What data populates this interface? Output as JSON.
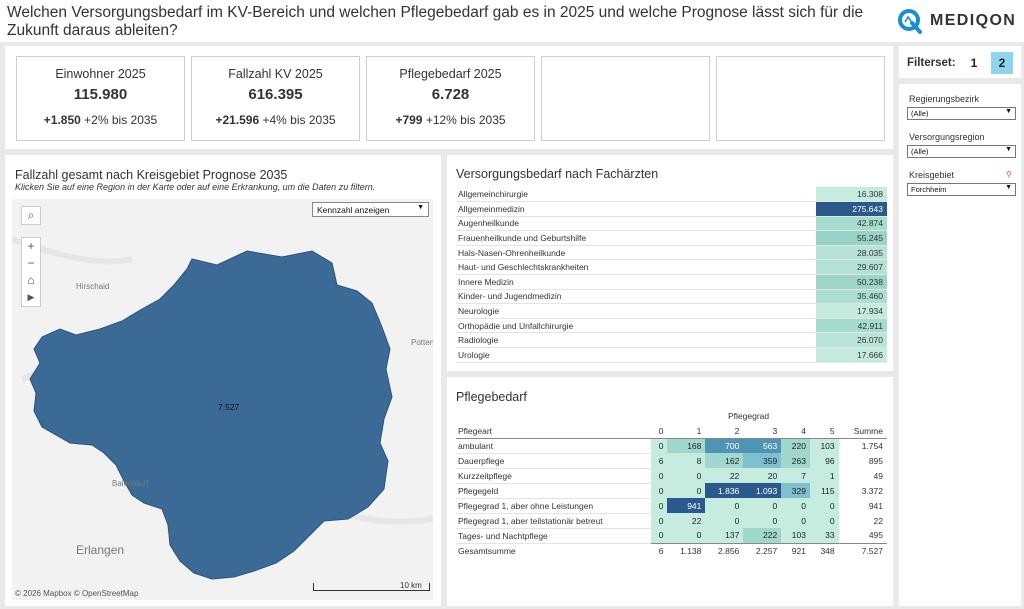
{
  "header": {
    "title": "Welchen Versorgungsbedarf im KV-Bereich und welchen Pflegebedarf gab es in 2025 und welche Prognose lässt sich für die Zukunft daraus ableiten?",
    "logo_text": "MEDIQON"
  },
  "kpis": [
    {
      "title": "Einwohner 2025",
      "value": "115.980",
      "delta_abs": "+1.850",
      "delta_text": " +2% bis 2035"
    },
    {
      "title": "Fallzahl KV 2025",
      "value": "616.395",
      "delta_abs": "+21.596",
      "delta_text": " +4% bis 2035"
    },
    {
      "title": "Pflegebedarf 2025",
      "value": "6.728",
      "delta_abs": "+799",
      "delta_text": " +12% bis 2035"
    }
  ],
  "map": {
    "title": "Fallzahl gesamt nach Kreisgebiet Prognose 2035",
    "subtitle": "Klicken Sie auf eine Region in der Karte oder auf eine Erkrankung, um die Daten zu filtern.",
    "select_label": "Kennzahl anzeigen",
    "region_value": "7.527",
    "places": [
      "Hirschaid",
      "Potten",
      "Baiersdorf",
      "Erlangen"
    ],
    "scale_label": "10 km",
    "attribution": "© 2026 Mapbox  © OpenStreetMap",
    "region_color": "#3b6a96"
  },
  "versorgungsbedarf": {
    "title": "Versorgungsbedarf nach Fachärzten",
    "rows": [
      {
        "name": "Allgemeinchirurgie",
        "value": "16.308",
        "color": "#c6ecdf",
        "text": "#333"
      },
      {
        "name": "Allgemeinmedizin",
        "value": "275.643",
        "color": "#2a5a8c",
        "text": "#fff"
      },
      {
        "name": "Augenheilkunde",
        "value": "42.874",
        "color": "#a6dccd",
        "text": "#333"
      },
      {
        "name": "Frauenheilkunde und Geburtshilfe",
        "value": "55.245",
        "color": "#97d3c6",
        "text": "#333"
      },
      {
        "name": "Hals-Nasen-Ohrenheilkunde",
        "value": "28.035",
        "color": "#b5e3d5",
        "text": "#333"
      },
      {
        "name": "Haut- und Geschlechtskrankheiten",
        "value": "29.607",
        "color": "#b3e2d4",
        "text": "#333"
      },
      {
        "name": "Innere Medizin",
        "value": "50.238",
        "color": "#9dd6c8",
        "text": "#333"
      },
      {
        "name": "Kinder- und Jugendmedizin",
        "value": "35.460",
        "color": "#acdfd1",
        "text": "#333"
      },
      {
        "name": "Neurologie",
        "value": "17.934",
        "color": "#c4ebdd",
        "text": "#333"
      },
      {
        "name": "Orthopädie und Unfallchirurgie",
        "value": "42.911",
        "color": "#a6dccd",
        "text": "#333"
      },
      {
        "name": "Radiologie",
        "value": "26.070",
        "color": "#b8e5d7",
        "text": "#333"
      },
      {
        "name": "Urologie",
        "value": "17.666",
        "color": "#c4ebdd",
        "text": "#333"
      }
    ]
  },
  "pflegebedarf": {
    "title": "Pflegebedarf",
    "group_label": "Pflegegrad",
    "col_header": "Pflegeart",
    "columns": [
      "0",
      "1",
      "2",
      "3",
      "4",
      "5"
    ],
    "sum_label": "Summe",
    "rows": [
      {
        "name": "ambulant",
        "values": [
          "0",
          "168",
          "700",
          "563",
          "220",
          "103"
        ],
        "sum": "1.754"
      },
      {
        "name": "Dauerpflege",
        "values": [
          "6",
          "8",
          "162",
          "359",
          "263",
          "96"
        ],
        "sum": "895"
      },
      {
        "name": "Kurzzeitpflege",
        "values": [
          "0",
          "0",
          "22",
          "20",
          "7",
          "1"
        ],
        "sum": "49"
      },
      {
        "name": "Pflegegeld",
        "values": [
          "0",
          "0",
          "1.836",
          "1.093",
          "329",
          "115"
        ],
        "sum": "3.372"
      },
      {
        "name": "Pflegegrad 1, aber ohne Leistungen",
        "values": [
          "0",
          "941",
          "0",
          "0",
          "0",
          "0"
        ],
        "sum": "941"
      },
      {
        "name": "Pflegegrad 1, aber teilstationär betreut",
        "values": [
          "0",
          "22",
          "0",
          "0",
          "0",
          "0"
        ],
        "sum": "22"
      },
      {
        "name": "Tages- und Nachtpflege",
        "values": [
          "0",
          "0",
          "137",
          "222",
          "103",
          "33"
        ],
        "sum": "495"
      }
    ],
    "total": {
      "name": "Gesamtsumme",
      "values": [
        "6",
        "1.138",
        "2.856",
        "2.257",
        "921",
        "348"
      ],
      "sum": "7.527"
    }
  },
  "filters": {
    "label": "Filterset:",
    "set1": "1",
    "set2": "2",
    "regierungsbezirk_label": "Regierungsbezirk",
    "regierungsbezirk_value": "(Alle)",
    "versorgungsregion_label": "Versorgungsregion",
    "versorgungsregion_value": "(Alle)",
    "kreisgebiet_label": "Kreisgebiet",
    "kreisgebiet_value": "Forchheim"
  },
  "colors": {
    "dark_cell": "#2a5a8c",
    "light_cell": "#c6ecdf",
    "active_filterset": "#8fd3ef"
  }
}
